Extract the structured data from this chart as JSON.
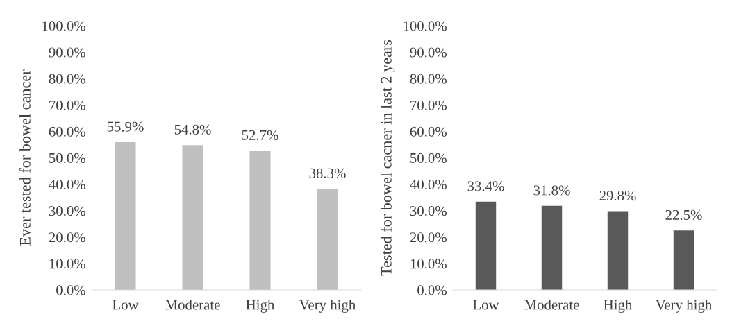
{
  "chart_data": [
    {
      "type": "bar",
      "ylabel": "Ever tested for bowel cancer",
      "categories": [
        "Low",
        "Moderate",
        "High",
        "Very high"
      ],
      "values": [
        55.9,
        54.8,
        52.7,
        38.3
      ],
      "color": "#bfbfbf",
      "value_labels": [
        "55.9%",
        "54.8%",
        "52.7%",
        "38.3%"
      ],
      "ylim": [
        0,
        100
      ],
      "yticks": [
        {
          "value": 0,
          "label": "0.0%"
        },
        {
          "value": 10,
          "label": "10.0%"
        },
        {
          "value": 20,
          "label": "20.0%"
        },
        {
          "value": 30,
          "label": "30.0%"
        },
        {
          "value": 40,
          "label": "40.0%"
        },
        {
          "value": 50,
          "label": "50.0%"
        },
        {
          "value": 60,
          "label": "60.0%"
        },
        {
          "value": 70,
          "label": "70.0%"
        },
        {
          "value": 80,
          "label": "80.0%"
        },
        {
          "value": 90,
          "label": "90.0%"
        },
        {
          "value": 100,
          "label": "100.0%"
        }
      ]
    },
    {
      "type": "bar",
      "ylabel": "Tested for bowel cacner in last 2 years",
      "categories": [
        "Low",
        "Moderate",
        "High",
        "Very high"
      ],
      "values": [
        33.4,
        31.8,
        29.8,
        22.5
      ],
      "color": "#595959",
      "value_labels": [
        "33.4%",
        "31.8%",
        "29.8%",
        "22.5%"
      ],
      "ylim": [
        0,
        100
      ],
      "yticks": [
        {
          "value": 0,
          "label": "0.0%"
        },
        {
          "value": 10,
          "label": "10.0%"
        },
        {
          "value": 20,
          "label": "20.0%"
        },
        {
          "value": 30,
          "label": "30.0%"
        },
        {
          "value": 40,
          "label": "40.0%"
        },
        {
          "value": 50,
          "label": "50.0%"
        },
        {
          "value": 60,
          "label": "60.0%"
        },
        {
          "value": 70,
          "label": "70.0%"
        },
        {
          "value": 80,
          "label": "80.0%"
        },
        {
          "value": 90,
          "label": "90.0%"
        },
        {
          "value": 100,
          "label": "100.0%"
        }
      ]
    }
  ]
}
